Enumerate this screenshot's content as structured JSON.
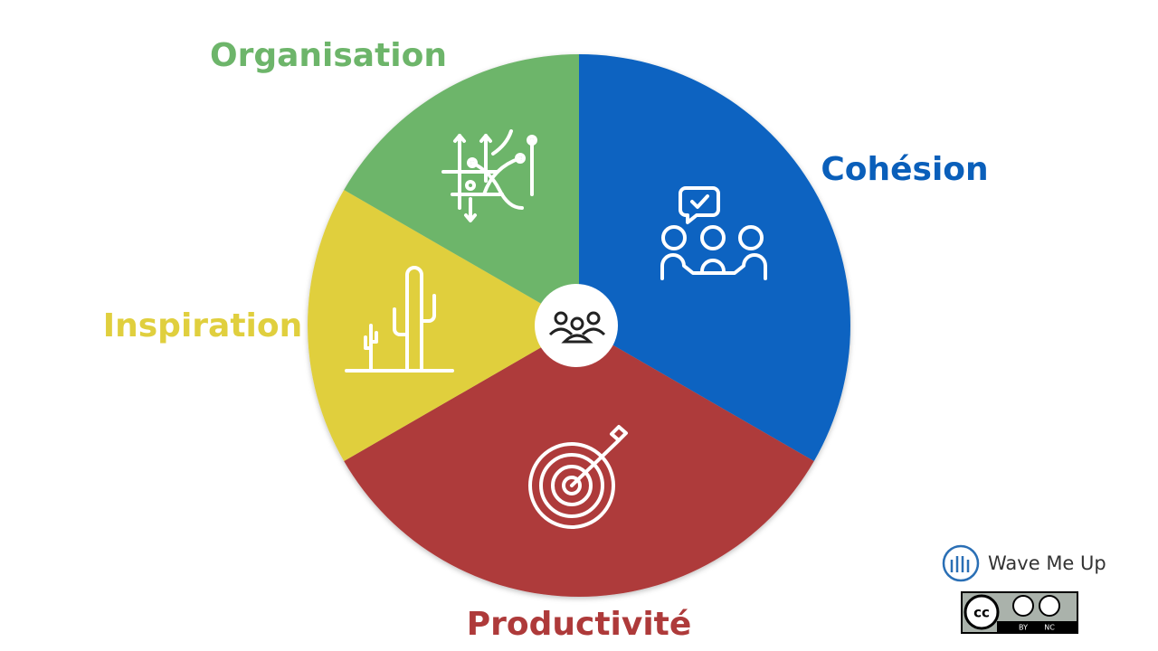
{
  "segments": [
    {
      "label": "Cohésion"
    },
    {
      "label": "Productivité"
    },
    {
      "label": "Inspiration"
    },
    {
      "label": "Organisation"
    }
  ],
  "logo": {
    "name": "Wave Me Up"
  },
  "license": {
    "cc": "cc",
    "by": "BY",
    "nc": "NC"
  }
}
